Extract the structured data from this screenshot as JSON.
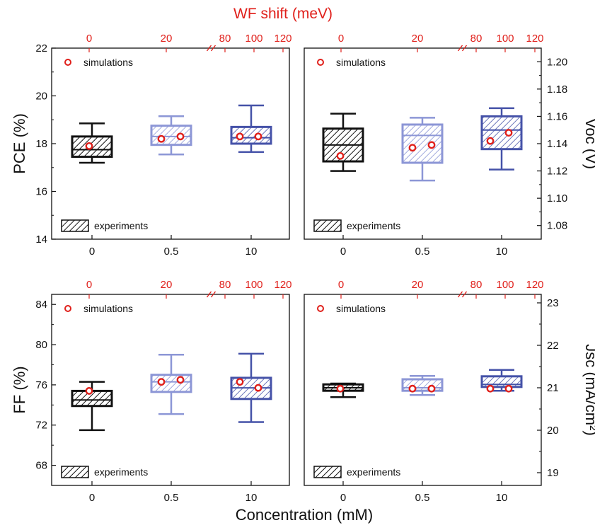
{
  "figure": {
    "top_axis_title": "WF shift (meV)",
    "bottom_axis_title": "Concentration (mM)",
    "top_ticks": [
      "0",
      "20",
      "80",
      "100",
      "120"
    ],
    "legend_sim": "simulations",
    "legend_exp": "experiments"
  },
  "colors": {
    "c0": "#111111",
    "c05": "#8c96d6",
    "c10": "#4552a8",
    "sim": "#e0201b",
    "accent_red": "#e0201b"
  },
  "chart_data": [
    {
      "type": "box",
      "panel": "PCE",
      "ylabel": "PCE (%)",
      "y_axis_side": "left",
      "ylim": [
        14,
        22
      ],
      "yticks": [
        14,
        16,
        18,
        20,
        22
      ],
      "categories": [
        "0",
        "0.5",
        "10"
      ],
      "boxes": [
        {
          "category": "0",
          "whisker_low": 17.2,
          "q1": 17.45,
          "median": 17.75,
          "q3": 18.3,
          "whisker_high": 18.85
        },
        {
          "category": "0.5",
          "whisker_low": 17.55,
          "q1": 17.95,
          "median": 18.3,
          "q3": 18.75,
          "whisker_high": 19.15
        },
        {
          "category": "10",
          "whisker_low": 17.65,
          "q1": 18.0,
          "median": 18.25,
          "q3": 18.7,
          "whisker_high": 19.6
        }
      ],
      "simulations": [
        {
          "wf_shift": 0,
          "value": 17.9
        },
        {
          "wf_shift": 20,
          "value": 18.2
        },
        {
          "wf_shift": 30,
          "value": 18.3
        },
        {
          "wf_shift": 100,
          "value": 18.3
        },
        {
          "wf_shift": 110,
          "value": 18.3
        }
      ]
    },
    {
      "type": "box",
      "panel": "Voc",
      "ylabel": "Voc (V)",
      "y_axis_side": "right",
      "ylim": [
        1.07,
        1.21
      ],
      "yticks": [
        1.08,
        1.1,
        1.12,
        1.14,
        1.16,
        1.18,
        1.2
      ],
      "categories": [
        "0",
        "0.5",
        "10"
      ],
      "boxes": [
        {
          "category": "0",
          "whisker_low": 1.12,
          "q1": 1.127,
          "median": 1.139,
          "q3": 1.151,
          "whisker_high": 1.162
        },
        {
          "category": "0.5",
          "whisker_low": 1.113,
          "q1": 1.126,
          "median": 1.146,
          "q3": 1.154,
          "whisker_high": 1.159
        },
        {
          "category": "10",
          "whisker_low": 1.121,
          "q1": 1.136,
          "median": 1.15,
          "q3": 1.16,
          "whisker_high": 1.166
        }
      ],
      "simulations": [
        {
          "wf_shift": 0,
          "value": 1.131
        },
        {
          "wf_shift": 20,
          "value": 1.137
        },
        {
          "wf_shift": 30,
          "value": 1.139
        },
        {
          "wf_shift": 100,
          "value": 1.142
        },
        {
          "wf_shift": 110,
          "value": 1.148
        }
      ]
    },
    {
      "type": "box",
      "panel": "FF",
      "ylabel": "FF (%)",
      "y_axis_side": "left",
      "ylim": [
        66,
        85
      ],
      "yticks": [
        68,
        72,
        76,
        80,
        84
      ],
      "categories": [
        "0",
        "0.5",
        "10"
      ],
      "boxes": [
        {
          "category": "0",
          "whisker_low": 71.5,
          "q1": 73.9,
          "median": 74.5,
          "q3": 75.4,
          "whisker_high": 76.3
        },
        {
          "category": "0.5",
          "whisker_low": 73.1,
          "q1": 75.3,
          "median": 76.3,
          "q3": 77.0,
          "whisker_high": 79.0
        },
        {
          "category": "10",
          "whisker_low": 72.3,
          "q1": 74.6,
          "median": 75.7,
          "q3": 76.7,
          "whisker_high": 79.1
        }
      ],
      "simulations": [
        {
          "wf_shift": 0,
          "value": 75.4
        },
        {
          "wf_shift": 20,
          "value": 76.3
        },
        {
          "wf_shift": 30,
          "value": 76.5
        },
        {
          "wf_shift": 100,
          "value": 76.3
        },
        {
          "wf_shift": 110,
          "value": 75.7
        }
      ]
    },
    {
      "type": "box",
      "panel": "Jsc",
      "ylabel": "Jsc (mA/cm²)",
      "y_axis_side": "right",
      "ylim": [
        18.7,
        23.2
      ],
      "yticks": [
        19,
        20,
        21,
        22,
        23
      ],
      "categories": [
        "0",
        "0.5",
        "10"
      ],
      "boxes": [
        {
          "category": "0",
          "whisker_low": 20.78,
          "q1": 20.93,
          "median": 21.0,
          "q3": 21.08,
          "whisker_high": 21.1
        },
        {
          "category": "0.5",
          "whisker_low": 20.83,
          "q1": 20.93,
          "median": 21.0,
          "q3": 21.2,
          "whisker_high": 21.28
        },
        {
          "category": "10",
          "whisker_low": 20.93,
          "q1": 21.02,
          "median": 21.08,
          "q3": 21.27,
          "whisker_high": 21.42
        }
      ],
      "simulations": [
        {
          "wf_shift": 0,
          "value": 20.98
        },
        {
          "wf_shift": 20,
          "value": 20.98
        },
        {
          "wf_shift": 30,
          "value": 20.98
        },
        {
          "wf_shift": 100,
          "value": 20.98
        },
        {
          "wf_shift": 110,
          "value": 20.98
        }
      ]
    }
  ]
}
